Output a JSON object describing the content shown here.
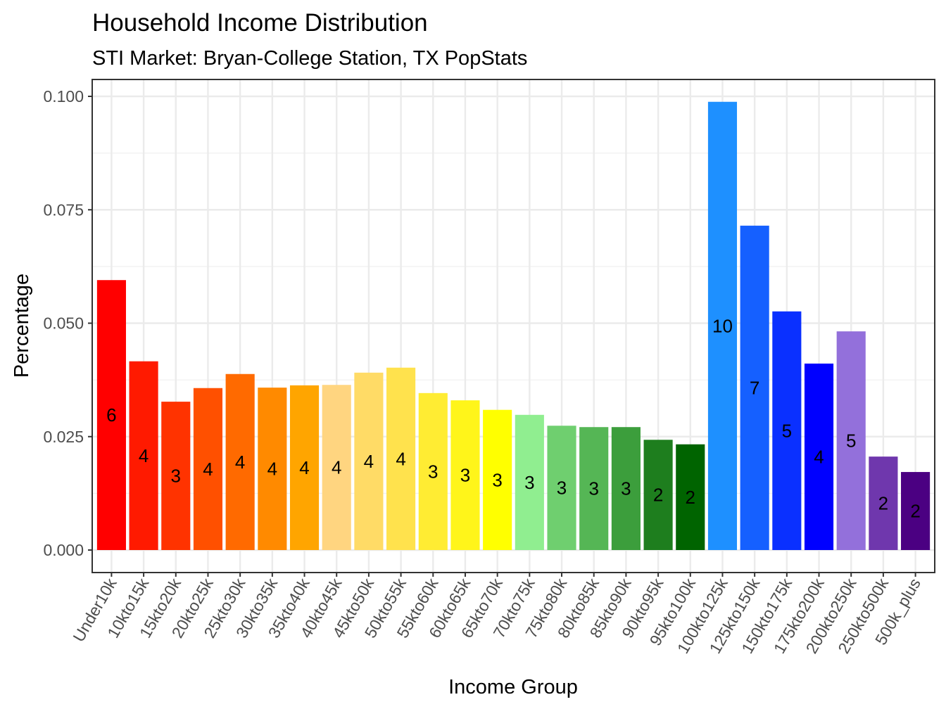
{
  "chart_data": {
    "type": "bar",
    "title": "Household Income Distribution",
    "subtitle": "STI Market: Bryan-College Station, TX PopStats",
    "xlabel": "Income Group",
    "ylabel": "Percentage",
    "ylim": [
      0,
      0.1
    ],
    "yticks": [
      "0.000",
      "0.025",
      "0.050",
      "0.075",
      "0.100"
    ],
    "grid": true,
    "categories": [
      "Under10k",
      "10kto15k",
      "15kto20k",
      "20kto25k",
      "25kto30k",
      "30kto35k",
      "35kto40k",
      "40kto45k",
      "45kto50k",
      "50kto55k",
      "55kto60k",
      "60kto65k",
      "65kto70k",
      "70kto75k",
      "75kto80k",
      "80kto85k",
      "85kto90k",
      "90kto95k",
      "95kto100k",
      "100kto125k",
      "125kto150k",
      "150kto175k",
      "175kto200k",
      "200kto250k",
      "250kto500k",
      "500k_plus"
    ],
    "values": [
      0.0595,
      0.0416,
      0.0327,
      0.0357,
      0.0388,
      0.0358,
      0.0363,
      0.0364,
      0.0391,
      0.0402,
      0.0346,
      0.033,
      0.0309,
      0.0298,
      0.0274,
      0.0271,
      0.0271,
      0.0243,
      0.0233,
      0.0988,
      0.0715,
      0.0526,
      0.0411,
      0.0482,
      0.0206,
      0.0172
    ],
    "labels": [
      "6",
      "4",
      "3",
      "4",
      "4",
      "4",
      "4",
      "4",
      "4",
      "4",
      "3",
      "3",
      "3",
      "3",
      "3",
      "3",
      "3",
      "2",
      "2",
      "10",
      "7",
      "5",
      "4",
      "5",
      "2",
      "2"
    ],
    "colors": [
      "#ff0000",
      "#ff1a00",
      "#ff3300",
      "#ff5000",
      "#ff6a00",
      "#ff8a00",
      "#ffa500",
      "#ffd580",
      "#ffdb66",
      "#ffe24d",
      "#ffec33",
      "#fff51a",
      "#ffff00",
      "#90ee90",
      "#6fcf6f",
      "#55b655",
      "#3c9e3c",
      "#1e7e1e",
      "#006400",
      "#1e90ff",
      "#1560ff",
      "#0a30ff",
      "#0000ff",
      "#9370db",
      "#6f37ad",
      "#4b0082"
    ]
  }
}
